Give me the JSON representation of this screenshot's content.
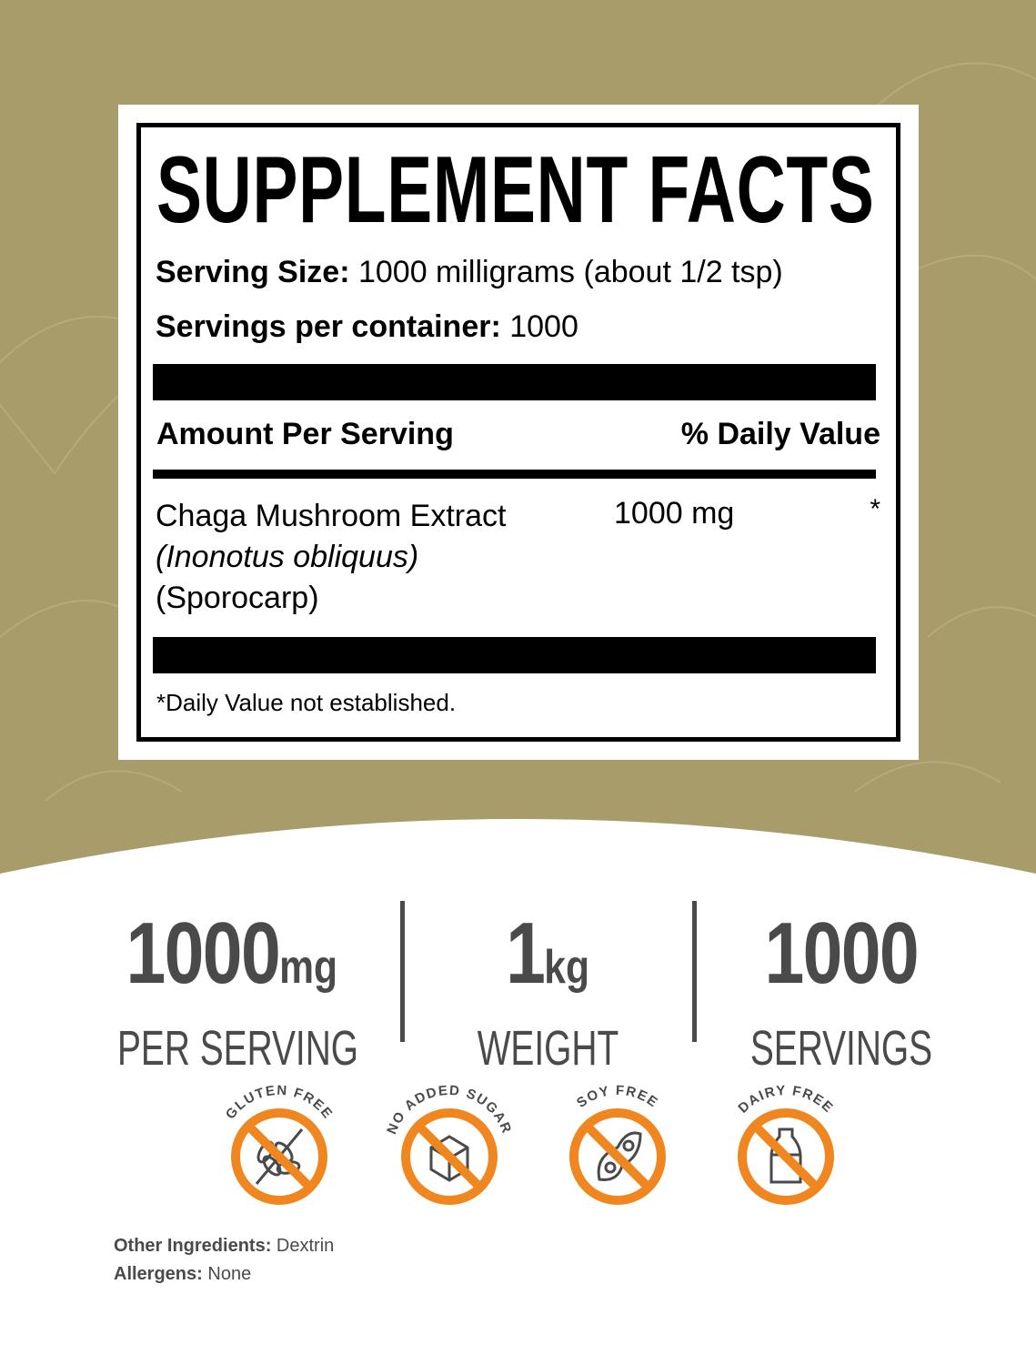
{
  "colors": {
    "background": "#a89d6a",
    "accent": "#f0861f",
    "stat_text": "#4a4a4a"
  },
  "facts": {
    "title": "SUPPLEMENT FACTS",
    "serving_size_label": "Serving Size:",
    "serving_size_value": "1000 milligrams (about 1/2 tsp)",
    "servings_label": "Servings per container:",
    "servings_value": "1000",
    "amount_header": "Amount Per Serving",
    "dv_header": "% Daily Value",
    "ingredient": {
      "name": "Chaga Mushroom Extract",
      "latin": "(Inonotus obliquus)",
      "part": "(Sporocarp)",
      "amount": "1000 mg",
      "dv": "*"
    },
    "footnote": "*Daily Value not established."
  },
  "stats": [
    {
      "value": "1000",
      "unit": "mg",
      "label": "PER SERVING"
    },
    {
      "value": "1",
      "unit": "kg",
      "label": "WEIGHT"
    },
    {
      "value": "1000",
      "unit": "",
      "label": "SERVINGS"
    }
  ],
  "badges": [
    {
      "label": "GLUTEN FREE",
      "icon": "wheat-icon"
    },
    {
      "label": "NO ADDED SUGAR",
      "icon": "sugar-cube-icon"
    },
    {
      "label": "SOY FREE",
      "icon": "soybean-icon"
    },
    {
      "label": "DAIRY FREE",
      "icon": "milk-bottle-icon"
    }
  ],
  "footer": {
    "other_label": "Other Ingredients:",
    "other_value": "Dextrin",
    "allergens_label": "Allergens:",
    "allergens_value": "None"
  }
}
